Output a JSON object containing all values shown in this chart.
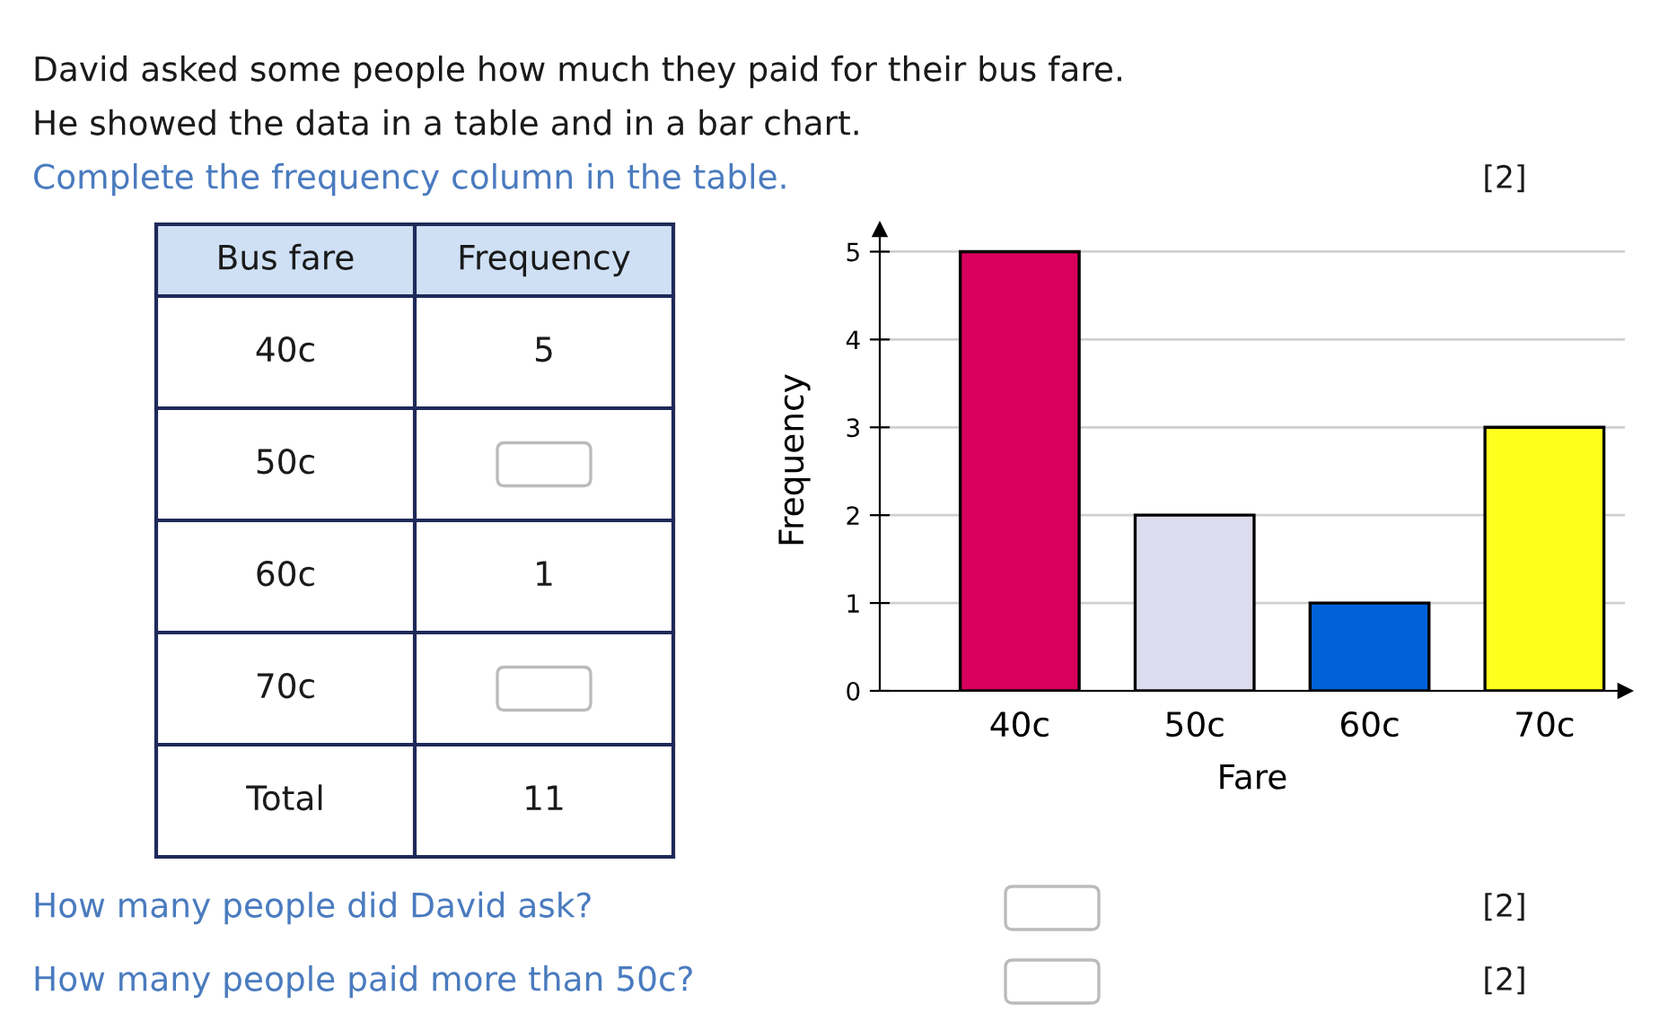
{
  "chart_data": {
    "type": "bar",
    "title": "David asked some people how much they paid for their bus fare.",
    "subtitle": "He showed the data in a table and in a bar chart.",
    "xlabel": "Fare",
    "ylabel": "Frequency",
    "categories": [
      "40c",
      "50c",
      "60c",
      "70c"
    ],
    "values": [
      5,
      2,
      1,
      3
    ],
    "colors": [
      "#d8005c",
      "#dcdcee",
      "#0062d9",
      "#ffff1e"
    ],
    "ylim": [
      0,
      5.25
    ],
    "yticks": [
      0,
      1,
      2,
      3,
      4,
      5
    ],
    "grid": "y",
    "annotations": [
      "Complete the frequency column in the table.",
      "[2]",
      "Bus fare",
      "Frequency",
      "5",
      null,
      "1",
      null,
      "Total",
      "11",
      "How many people did David ask?",
      "[2]",
      "How many people paid more than 50c?",
      "[2]"
    ]
  }
}
